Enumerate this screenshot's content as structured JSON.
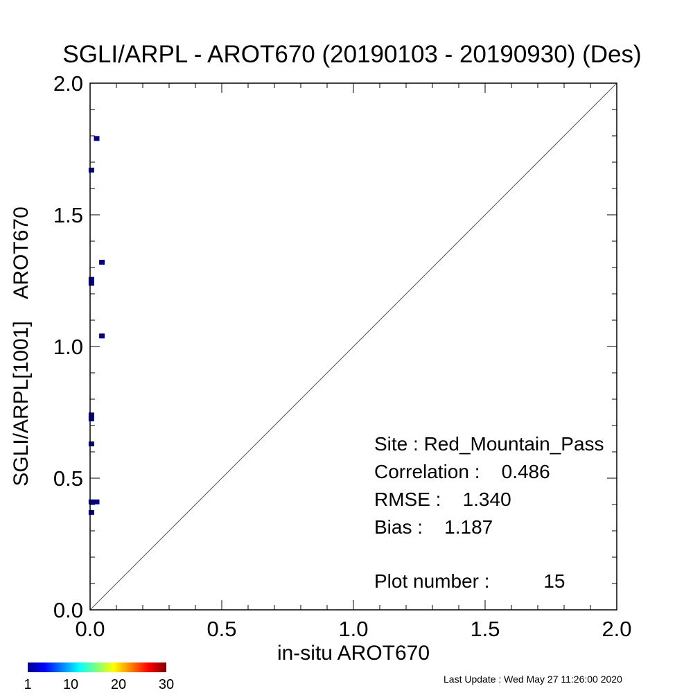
{
  "chart_data": {
    "type": "scatter",
    "title": "SGLI/ARPL - AROT670 (20190103 - 20190930) (Des)",
    "xlabel": "in-situ AROT670",
    "ylabel": "SGLI/ARPL[1001]    AROT670",
    "xlim": [
      0.0,
      2.0
    ],
    "ylim": [
      0.0,
      2.0
    ],
    "x_ticks": [
      "0.0",
      "0.5",
      "1.0",
      "1.5",
      "2.0"
    ],
    "y_ticks": [
      "0.0",
      "0.5",
      "1.0",
      "1.5",
      "2.0"
    ],
    "x_tick_values": [
      0.0,
      0.5,
      1.0,
      1.5,
      2.0
    ],
    "y_tick_values": [
      0.0,
      0.5,
      1.0,
      1.5,
      2.0
    ],
    "one_to_one_line": true,
    "grid": false,
    "points": [
      {
        "x": 0.025,
        "y": 1.79
      },
      {
        "x": 0.005,
        "y": 1.67
      },
      {
        "x": 0.045,
        "y": 1.32
      },
      {
        "x": 0.005,
        "y": 1.255
      },
      {
        "x": 0.005,
        "y": 1.24
      },
      {
        "x": 0.045,
        "y": 1.04
      },
      {
        "x": 0.005,
        "y": 0.74
      },
      {
        "x": 0.005,
        "y": 0.725
      },
      {
        "x": 0.005,
        "y": 0.63
      },
      {
        "x": 0.005,
        "y": 0.41
      },
      {
        "x": 0.025,
        "y": 0.41
      },
      {
        "x": 0.005,
        "y": 0.37
      }
    ],
    "point_color": "#00008b",
    "stats": {
      "site": "Site : Red_Mountain_Pass",
      "correlation": "Correlation :    0.486",
      "rmse": "RMSE :    1.340",
      "bias": "Bias :    1.187",
      "plot_number": "Plot number :          15"
    },
    "colorbar": {
      "labels": [
        "1",
        "10",
        "20",
        "30"
      ],
      "label_values": [
        1,
        10,
        20,
        30
      ],
      "range": [
        1,
        30
      ],
      "colormap": "jet"
    },
    "last_update": "Last Update : Wed May 27 11:26:00 2020"
  }
}
